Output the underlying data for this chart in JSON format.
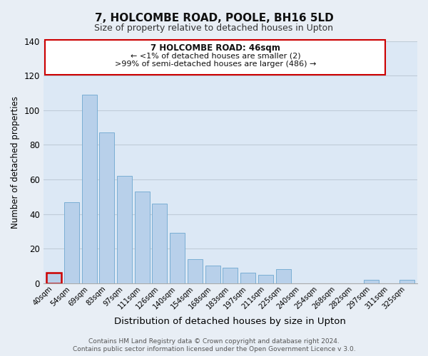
{
  "title": "7, HOLCOMBE ROAD, POOLE, BH16 5LD",
  "subtitle": "Size of property relative to detached houses in Upton",
  "xlabel": "Distribution of detached houses by size in Upton",
  "ylabel": "Number of detached properties",
  "categories": [
    "40sqm",
    "54sqm",
    "69sqm",
    "83sqm",
    "97sqm",
    "111sqm",
    "126sqm",
    "140sqm",
    "154sqm",
    "168sqm",
    "183sqm",
    "197sqm",
    "211sqm",
    "225sqm",
    "240sqm",
    "254sqm",
    "268sqm",
    "282sqm",
    "297sqm",
    "311sqm",
    "325sqm"
  ],
  "values": [
    6,
    47,
    109,
    87,
    62,
    53,
    46,
    29,
    14,
    10,
    9,
    6,
    5,
    8,
    0,
    0,
    0,
    0,
    2,
    0,
    2
  ],
  "bar_color": "#b8d0ea",
  "bar_edge_color": "#7aaed4",
  "highlight_edge_color": "#cc0000",
  "highlight_index": 0,
  "ylim": [
    0,
    140
  ],
  "yticks": [
    0,
    20,
    40,
    60,
    80,
    100,
    120,
    140
  ],
  "annotation_title": "7 HOLCOMBE ROAD: 46sqm",
  "annotation_line1": "← <1% of detached houses are smaller (2)",
  "annotation_line2": ">99% of semi-detached houses are larger (486) →",
  "annotation_box_color": "#ffffff",
  "annotation_box_edge": "#cc0000",
  "footer1": "Contains HM Land Registry data © Crown copyright and database right 2024.",
  "footer2": "Contains public sector information licensed under the Open Government Licence v 3.0.",
  "background_color": "#e8eef5",
  "plot_background_color": "#dce8f5",
  "grid_color": "#c0ccd8"
}
